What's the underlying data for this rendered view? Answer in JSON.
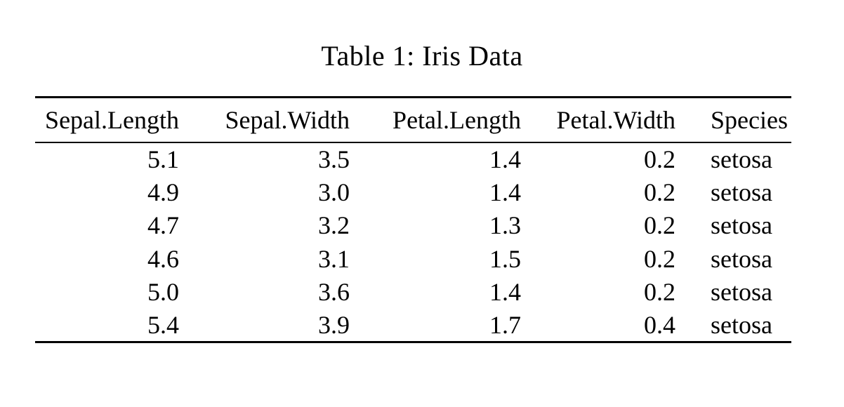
{
  "page": {
    "background_color": "#ffffff",
    "text_color": "#000000",
    "rule_color": "#000000"
  },
  "caption": "Table 1: Iris Data",
  "table": {
    "columns": [
      "Sepal.Length",
      "Sepal.Width",
      "Petal.Length",
      "Petal.Width",
      "Species"
    ],
    "rows": [
      [
        "5.1",
        "3.5",
        "1.4",
        "0.2",
        "setosa"
      ],
      [
        "4.9",
        "3.0",
        "1.4",
        "0.2",
        "setosa"
      ],
      [
        "4.7",
        "3.2",
        "1.3",
        "0.2",
        "setosa"
      ],
      [
        "4.6",
        "3.1",
        "1.5",
        "0.2",
        "setosa"
      ],
      [
        "5.0",
        "3.6",
        "1.4",
        "0.2",
        "setosa"
      ],
      [
        "5.4",
        "3.9",
        "1.7",
        "0.4",
        "setosa"
      ]
    ]
  }
}
